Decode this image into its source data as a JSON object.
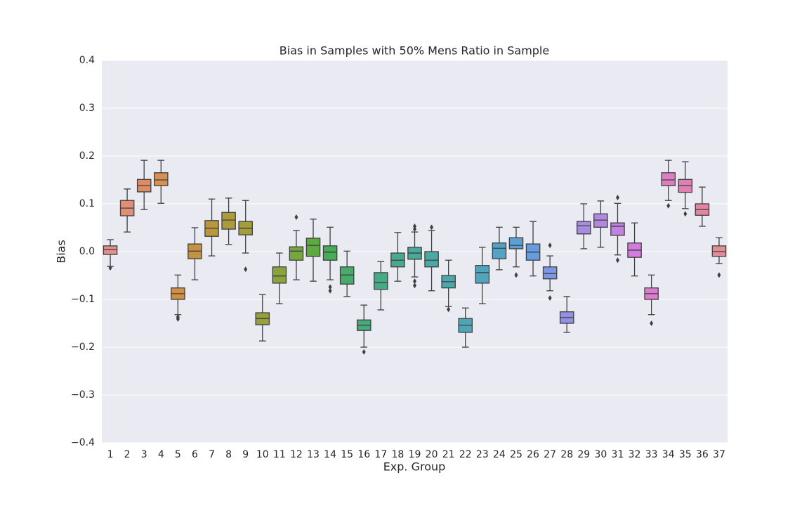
{
  "chart_data": {
    "type": "box",
    "title": "Bias in Samples with 50% Mens Ratio in Sample",
    "xlabel": "Exp. Group",
    "ylabel": "Bias",
    "ylim": [
      -0.4,
      0.4
    ],
    "yticks": [
      {
        "value": -0.4,
        "label": "−0.4"
      },
      {
        "value": -0.3,
        "label": "−0.3"
      },
      {
        "value": -0.2,
        "label": "−0.2"
      },
      {
        "value": -0.1,
        "label": "−0.1"
      },
      {
        "value": 0,
        "label": "0.0"
      },
      0.1,
      0.2,
      0.3,
      0.4
    ],
    "grid": true,
    "background": "#eaeaf2",
    "grid_color": "#ffffff",
    "line_color": "#3f3f3f",
    "categories": [
      "1",
      "2",
      "3",
      "4",
      "5",
      "6",
      "7",
      "8",
      "9",
      "10",
      "11",
      "12",
      "13",
      "14",
      "15",
      "16",
      "17",
      "18",
      "19",
      "20",
      "21",
      "22",
      "23",
      "24",
      "25",
      "26",
      "27",
      "28",
      "29",
      "30",
      "31",
      "32",
      "33",
      "34",
      "35",
      "36",
      "37"
    ],
    "boxes": [
      {
        "whislo": -0.031,
        "q1": -0.006,
        "med": 0.004,
        "q3": 0.012,
        "whishi": 0.025,
        "fliers": [
          -0.034
        ],
        "color": "#e28f88"
      },
      {
        "whislo": 0.041,
        "q1": 0.075,
        "med": 0.091,
        "q3": 0.107,
        "whishi": 0.131,
        "fliers": [],
        "color": "#e08e78"
      },
      {
        "whislo": 0.088,
        "q1": 0.125,
        "med": 0.138,
        "q3": 0.151,
        "whishi": 0.191,
        "fliers": [],
        "color": "#dc8c63"
      },
      {
        "whislo": 0.101,
        "q1": 0.138,
        "med": 0.15,
        "q3": 0.165,
        "whishi": 0.191,
        "fliers": [],
        "color": "#d88f52"
      },
      {
        "whislo": -0.132,
        "q1": -0.1,
        "med": -0.088,
        "q3": -0.076,
        "whishi": -0.049,
        "fliers": [
          -0.137,
          -0.141
        ],
        "color": "#d08f44"
      },
      {
        "whislo": -0.059,
        "q1": -0.015,
        "med": 0.001,
        "q3": 0.016,
        "whishi": 0.05,
        "fliers": [],
        "color": "#c5933f"
      },
      {
        "whislo": -0.009,
        "q1": 0.032,
        "med": 0.049,
        "q3": 0.065,
        "whishi": 0.11,
        "fliers": [],
        "color": "#b8973d"
      },
      {
        "whislo": 0.015,
        "q1": 0.047,
        "med": 0.066,
        "q3": 0.082,
        "whishi": 0.112,
        "fliers": [],
        "color": "#ad9a3c"
      },
      {
        "whislo": -0.003,
        "q1": 0.035,
        "med": 0.049,
        "q3": 0.063,
        "whishi": 0.107,
        "fliers": [
          -0.037
        ],
        "color": "#a39d3c"
      },
      {
        "whislo": -0.187,
        "q1": -0.153,
        "med": -0.14,
        "q3": -0.128,
        "whishi": -0.09,
        "fliers": [],
        "color": "#98a03c"
      },
      {
        "whislo": -0.109,
        "q1": -0.066,
        "med": -0.051,
        "q3": -0.032,
        "whishi": -0.003,
        "fliers": [],
        "color": "#8aa33c"
      },
      {
        "whislo": -0.059,
        "q1": -0.018,
        "med": 0.001,
        "q3": 0.01,
        "whishi": 0.044,
        "fliers": [
          0.072
        ],
        "color": "#78a63e"
      },
      {
        "whislo": -0.062,
        "q1": -0.01,
        "med": 0.013,
        "q3": 0.028,
        "whishi": 0.068,
        "fliers": [],
        "color": "#5fa942"
      },
      {
        "whislo": -0.059,
        "q1": -0.018,
        "med": -0.001,
        "q3": 0.012,
        "whishi": 0.051,
        "fliers": [
          -0.074,
          -0.082
        ],
        "color": "#48ab56"
      },
      {
        "whislo": -0.094,
        "q1": -0.068,
        "med": -0.049,
        "q3": -0.032,
        "whishi": 0.001,
        "fliers": [],
        "color": "#46ab6b"
      },
      {
        "whislo": -0.2,
        "q1": -0.165,
        "med": -0.154,
        "q3": -0.143,
        "whishi": -0.112,
        "fliers": [
          -0.21
        ],
        "color": "#47aa7a"
      },
      {
        "whislo": -0.122,
        "q1": -0.079,
        "med": -0.065,
        "q3": -0.044,
        "whishi": -0.021,
        "fliers": [],
        "color": "#48aa85"
      },
      {
        "whislo": -0.062,
        "q1": -0.032,
        "med": -0.018,
        "q3": -0.003,
        "whishi": 0.04,
        "fliers": [],
        "color": "#49a98f"
      },
      {
        "whislo": -0.053,
        "q1": -0.016,
        "med": -0.003,
        "q3": 0.009,
        "whishi": 0.041,
        "fliers": [
          0.053,
          0.047,
          -0.062,
          -0.071
        ],
        "color": "#4aa999"
      },
      {
        "whislo": -0.082,
        "q1": -0.032,
        "med": -0.018,
        "q3": 0.0,
        "whishi": 0.044,
        "fliers": [
          0.051
        ],
        "color": "#4ba8a2"
      },
      {
        "whislo": -0.115,
        "q1": -0.076,
        "med": -0.063,
        "q3": -0.05,
        "whishi": -0.018,
        "fliers": [
          -0.121
        ],
        "color": "#4ca7ab"
      },
      {
        "whislo": -0.2,
        "q1": -0.169,
        "med": -0.154,
        "q3": -0.14,
        "whishi": -0.118,
        "fliers": [],
        "color": "#4ea6b4"
      },
      {
        "whislo": -0.109,
        "q1": -0.066,
        "med": -0.044,
        "q3": -0.029,
        "whishi": 0.009,
        "fliers": [],
        "color": "#50a5be"
      },
      {
        "whislo": -0.038,
        "q1": -0.015,
        "med": 0.007,
        "q3": 0.018,
        "whishi": 0.051,
        "fliers": [],
        "color": "#53a3c9"
      },
      {
        "whislo": -0.032,
        "q1": 0.006,
        "med": 0.013,
        "q3": 0.029,
        "whishi": 0.051,
        "fliers": [
          -0.049
        ],
        "color": "#5aa0d5"
      },
      {
        "whislo": -0.051,
        "q1": -0.018,
        "med": -0.001,
        "q3": 0.016,
        "whishi": 0.063,
        "fliers": [],
        "color": "#679ce0"
      },
      {
        "whislo": -0.082,
        "q1": -0.057,
        "med": -0.046,
        "q3": -0.032,
        "whishi": -0.009,
        "fliers": [
          0.013,
          -0.097
        ],
        "color": "#7c97e3"
      },
      {
        "whislo": -0.169,
        "q1": -0.15,
        "med": -0.138,
        "q3": -0.126,
        "whishi": -0.094,
        "fliers": [],
        "color": "#9391e3"
      },
      {
        "whislo": 0.006,
        "q1": 0.037,
        "med": 0.054,
        "q3": 0.063,
        "whishi": 0.1,
        "fliers": [],
        "color": "#a58ce3"
      },
      {
        "whislo": 0.009,
        "q1": 0.051,
        "med": 0.066,
        "q3": 0.079,
        "whishi": 0.106,
        "fliers": [],
        "color": "#b487e3"
      },
      {
        "whislo": -0.007,
        "q1": 0.034,
        "med": 0.053,
        "q3": 0.06,
        "whishi": 0.101,
        "fliers": [
          0.113,
          -0.018
        ],
        "color": "#c382e2"
      },
      {
        "whislo": -0.051,
        "q1": -0.012,
        "med": 0.003,
        "q3": 0.018,
        "whishi": 0.06,
        "fliers": [],
        "color": "#d27ddd"
      },
      {
        "whislo": -0.132,
        "q1": -0.1,
        "med": -0.088,
        "q3": -0.076,
        "whishi": -0.049,
        "fliers": [
          -0.15
        ],
        "color": "#dd7bcf"
      },
      {
        "whislo": 0.107,
        "q1": 0.138,
        "med": 0.15,
        "q3": 0.165,
        "whishi": 0.191,
        "fliers": [
          0.096
        ],
        "color": "#e07cc0"
      },
      {
        "whislo": 0.09,
        "q1": 0.124,
        "med": 0.138,
        "q3": 0.151,
        "whishi": 0.188,
        "fliers": [
          0.079
        ],
        "color": "#e27fb2"
      },
      {
        "whislo": 0.053,
        "q1": 0.076,
        "med": 0.088,
        "q3": 0.1,
        "whishi": 0.135,
        "fliers": [],
        "color": "#e285a3"
      },
      {
        "whislo": -0.025,
        "q1": -0.01,
        "med": 0.0,
        "q3": 0.012,
        "whishi": 0.029,
        "fliers": [
          -0.049
        ],
        "color": "#e28c95"
      }
    ]
  }
}
